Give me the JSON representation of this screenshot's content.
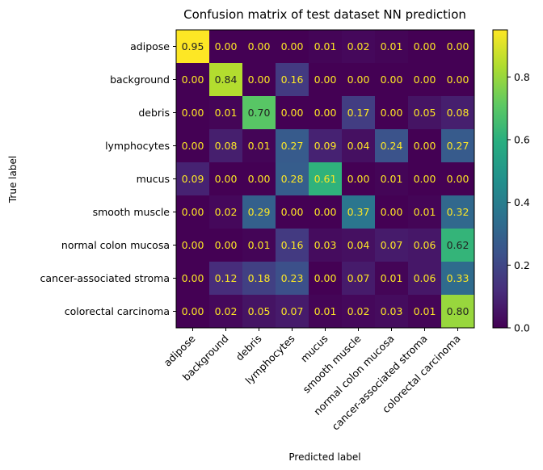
{
  "chart_data": {
    "type": "heatmap",
    "title": "Confusion matrix of test dataset NN prediction",
    "xlabel": "Predicted label",
    "ylabel": "True label",
    "labels": [
      "adipose",
      "background",
      "debris",
      "lymphocytes",
      "mucus",
      "smooth muscle",
      "normal colon mucosa",
      "cancer-associated stroma",
      "colorectal carcinoma"
    ],
    "matrix": [
      [
        0.95,
        0.0,
        0.0,
        0.0,
        0.01,
        0.02,
        0.01,
        0.0,
        0.0
      ],
      [
        0.0,
        0.84,
        0.0,
        0.16,
        0.0,
        0.0,
        0.0,
        0.0,
        0.0
      ],
      [
        0.0,
        0.01,
        0.7,
        0.0,
        0.0,
        0.17,
        0.0,
        0.05,
        0.08
      ],
      [
        0.0,
        0.08,
        0.01,
        0.27,
        0.09,
        0.04,
        0.24,
        0.0,
        0.27
      ],
      [
        0.09,
        0.0,
        0.0,
        0.28,
        0.61,
        0.0,
        0.01,
        0.0,
        0.0
      ],
      [
        0.0,
        0.02,
        0.29,
        0.0,
        0.0,
        0.37,
        0.0,
        0.01,
        0.32
      ],
      [
        0.0,
        0.0,
        0.01,
        0.16,
        0.03,
        0.04,
        0.07,
        0.06,
        0.62
      ],
      [
        0.0,
        0.12,
        0.18,
        0.23,
        0.0,
        0.07,
        0.01,
        0.06,
        0.33
      ],
      [
        0.0,
        0.02,
        0.05,
        0.07,
        0.01,
        0.02,
        0.03,
        0.01,
        0.8
      ]
    ],
    "colorbar": {
      "min": 0.0,
      "max": 0.95,
      "ticks": [
        "0.0",
        "0.2",
        "0.4",
        "0.6",
        "0.8"
      ],
      "colormap": "viridis"
    },
    "grid": false
  }
}
